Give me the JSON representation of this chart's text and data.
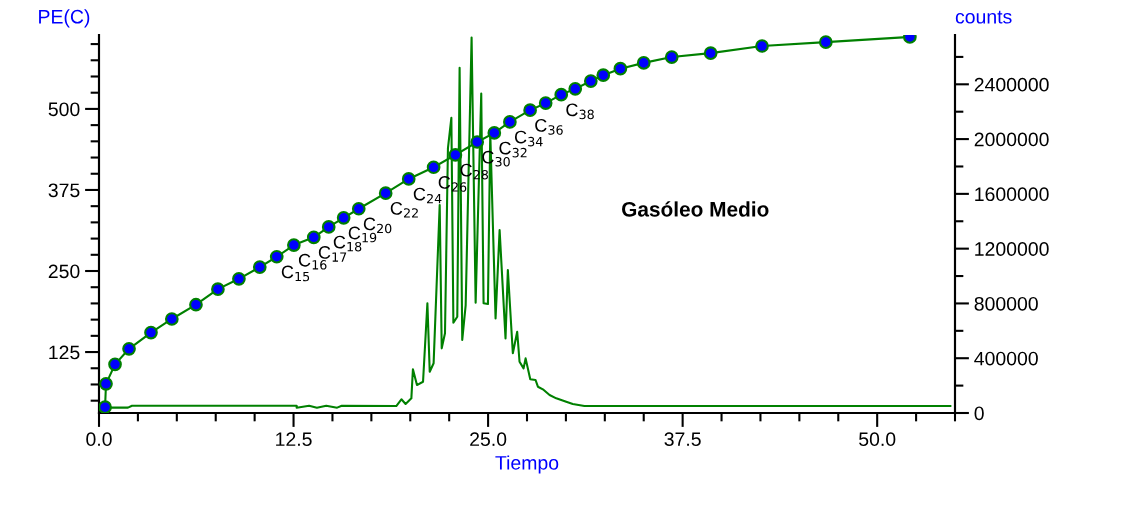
{
  "chart_data": {
    "type": "line",
    "xlabel": "Tiempo",
    "ylabel": "PE(C)",
    "y2label": "counts",
    "xlim": [
      0,
      55
    ],
    "xticks": [
      {
        "value": 0,
        "label": "0.0"
      },
      {
        "value": 12.5,
        "label": "12.5"
      },
      {
        "value": 25,
        "label": "25.0"
      },
      {
        "value": 37.5,
        "label": "37.5"
      },
      {
        "value": 50,
        "label": "50.0"
      }
    ],
    "ylim": [
      31,
      614
    ],
    "yticks": [
      125,
      250,
      375,
      500
    ],
    "y2lim": [
      0,
      2760000
    ],
    "y2ticks": [
      0,
      400000,
      800000,
      1200000,
      1600000,
      2000000,
      2400000
    ],
    "grid": false,
    "legend": false,
    "series": [
      {
        "color": "#008000",
        "marker": "circle",
        "colors": [
          "#0000ff",
          "#0000ff",
          "#0000ff",
          "#0000ff",
          "#0000ff",
          "#0000ff",
          "#0000ff",
          "#0000ff",
          "#0000ff",
          "#0000ff",
          "#0000ff",
          "#0000ff",
          "#0000ff",
          "#0000ff",
          "#0000ff",
          "#0000ff",
          "#0000ff",
          "#0000ff",
          "#0000ff",
          "#0000ff",
          "#0000ff",
          "#0000ff",
          "#0000ff",
          "#0000ff",
          "#0000ff",
          "#0000ff",
          "#0000ff",
          "#0000ff",
          "#0000ff",
          "#0000ff",
          "#0000ff",
          "#0000ff",
          "#0000ff",
          "#0000ff",
          "#0000ff",
          "#0000ff"
        ],
        "x": [
          0.39,
          0.45,
          1.03,
          1.93,
          3.34,
          4.68,
          6.23,
          7.64,
          8.99,
          10.33,
          11.42,
          12.52,
          13.8,
          14.76,
          15.72,
          16.69,
          18.42,
          19.9,
          21.5,
          22.9,
          24.3,
          25.4,
          26.4,
          27.7,
          28.7,
          29.7,
          30.6,
          31.6,
          32.4,
          33.5,
          35.0,
          36.8,
          39.3,
          42.6,
          46.7,
          52.1
        ],
        "values": [
          40,
          76,
          106,
          130,
          155,
          176,
          198,
          222,
          238,
          256,
          272,
          290,
          302,
          318,
          332,
          346,
          370,
          392,
          410,
          429,
          449,
          463,
          480,
          498,
          509,
          522,
          531,
          543,
          552,
          562,
          571,
          580,
          586,
          597,
          603,
          611
        ]
      },
      {
        "axis": "y2",
        "color": "#008000",
        "marker": "none",
        "x": [
          0.26,
          1.86,
          2.12,
          12.7,
          12.7,
          13.5,
          14.0,
          14.6,
          15.3,
          15.6,
          19.1,
          19.43,
          19.7,
          20.07,
          20.17,
          20.43,
          20.82,
          21.1,
          21.25,
          21.5,
          21.89,
          22.02,
          22.23,
          22.42,
          22.64,
          22.77,
          23.02,
          23.17,
          23.34,
          23.56,
          23.94,
          24.2,
          24.56,
          24.71,
          24.99,
          25.14,
          25.48,
          25.74,
          26.12,
          26.27,
          26.59,
          26.87,
          27.02,
          27.28,
          27.41,
          27.71,
          28.05,
          28.2,
          28.52,
          28.95,
          29.38,
          30.02,
          30.44,
          31.19,
          54.7
        ],
        "values": [
          39000,
          39000,
          53000,
          53000,
          39000,
          53000,
          39000,
          53000,
          39000,
          53000,
          51000,
          100000,
          66000,
          107000,
          319000,
          204000,
          228000,
          801000,
          301000,
          363000,
          1518000,
          472000,
          582000,
          1932000,
          2155000,
          659000,
          703000,
          2520000,
          533000,
          788000,
          2742000,
          805000,
          2333000,
          801000,
          796000,
          2042000,
          691000,
          1336000,
          545000,
          1044000,
          436000,
          593000,
          374000,
          326000,
          399000,
          246000,
          241000,
          192000,
          173000,
          131000,
          107000,
          82000,
          66000,
          51000,
          51000
        ]
      }
    ],
    "annotations": [
      {
        "text": "C$_{15}$",
        "x": 11.42,
        "y": 272
      },
      {
        "text": "C$_{16}$",
        "x": 12.52,
        "y": 290
      },
      {
        "text": "C$_{17}$",
        "x": 13.8,
        "y": 302
      },
      {
        "text": "C$_{18}$",
        "x": 14.76,
        "y": 318
      },
      {
        "text": "C$_{19}$",
        "x": 15.72,
        "y": 332
      },
      {
        "text": "C$_{20}$",
        "x": 16.69,
        "y": 346
      },
      {
        "text": "C$_{22}$",
        "x": 18.42,
        "y": 370
      },
      {
        "text": "C$_{24}$",
        "x": 19.9,
        "y": 392
      },
      {
        "text": "C$_{26}$",
        "x": 21.5,
        "y": 410
      },
      {
        "text": "C$_{28}$",
        "x": 22.9,
        "y": 429
      },
      {
        "text": "C$_{30}$",
        "x": 24.3,
        "y": 449
      },
      {
        "text": "C$_{32}$",
        "x": 25.4,
        "y": 463
      },
      {
        "text": "C$_{34}$",
        "x": 26.4,
        "y": 480
      },
      {
        "text": "C$_{36}$",
        "x": 27.7,
        "y": 498
      },
      {
        "text": "C$_{38}$",
        "x": 29.7,
        "y": 522
      },
      "Gasóleo Medio"
    ]
  }
}
